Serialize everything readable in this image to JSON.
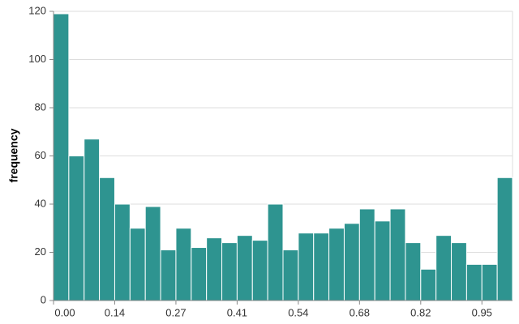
{
  "chart_data": {
    "type": "histogram",
    "y_label": "frequency",
    "bins": [
      0,
      0.034,
      0.068,
      0.102,
      0.136,
      0.17,
      0.204,
      0.238,
      0.272,
      0.306,
      0.34,
      0.374,
      0.408,
      0.442,
      0.476,
      0.51,
      0.544,
      0.578,
      0.612,
      0.646,
      0.68,
      0.714,
      0.748,
      0.782,
      0.816,
      0.85,
      0.884,
      0.918,
      0.952,
      0.986,
      1.02
    ],
    "counts": [
      119,
      60,
      67,
      51,
      40,
      30,
      39,
      21,
      30,
      22,
      26,
      24,
      27,
      25,
      40,
      21,
      28,
      28,
      30,
      32,
      38,
      33,
      38,
      24,
      13,
      27,
      24,
      15,
      15,
      51
    ],
    "color": "#2e9490",
    "xlim": [
      0,
      1.02
    ],
    "xticks": [
      {
        "value": 0,
        "label": "0.00"
      },
      {
        "value": 0.136,
        "label": "0.14"
      },
      {
        "value": 0.272,
        "label": "0.27"
      },
      {
        "value": 0.408,
        "label": "0.41"
      },
      {
        "value": 0.544,
        "label": "0.54"
      },
      {
        "value": 0.68,
        "label": "0.68"
      },
      {
        "value": 0.816,
        "label": "0.82"
      },
      {
        "value": 0.952,
        "label": "0.95"
      }
    ],
    "ylim": [
      0,
      120
    ],
    "yticks": [
      0,
      20,
      40,
      60,
      80,
      100,
      120
    ],
    "grid": true
  }
}
